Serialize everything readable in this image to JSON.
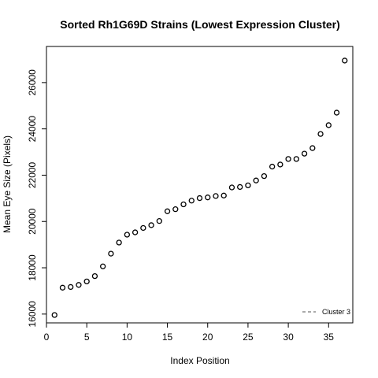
{
  "chart_data": {
    "type": "scatter",
    "title": "Sorted Rh1G69D Strains (Lowest Expression Cluster)",
    "xlabel": "Index Position",
    "ylabel": "Mean Eye Size (Pixels)",
    "xlim": [
      0,
      38
    ],
    "ylim": [
      15620,
      27560
    ],
    "xticks": [
      0,
      5,
      10,
      15,
      20,
      25,
      30,
      35
    ],
    "yticks": [
      16000,
      18000,
      20000,
      22000,
      24000,
      26000
    ],
    "grid": false,
    "legend": {
      "placement": "bottom-right",
      "entries": [
        "Cluster 3"
      ]
    },
    "marker_color": "#000000",
    "x": [
      1,
      2,
      3,
      4,
      5,
      6,
      7,
      8,
      9,
      10,
      11,
      12,
      13,
      14,
      15,
      16,
      17,
      18,
      19,
      20,
      21,
      22,
      23,
      24,
      25,
      26,
      27,
      28,
      29,
      30,
      31,
      32,
      33,
      34,
      35,
      36,
      37
    ],
    "y": [
      15960,
      17140,
      17170,
      17260,
      17410,
      17640,
      18060,
      18610,
      19090,
      19430,
      19530,
      19720,
      19840,
      20020,
      20440,
      20530,
      20740,
      20900,
      21010,
      21040,
      21100,
      21120,
      21470,
      21490,
      21560,
      21770,
      21960,
      22370,
      22460,
      22700,
      22700,
      22930,
      23170,
      23780,
      24160,
      24700,
      26950
    ]
  }
}
